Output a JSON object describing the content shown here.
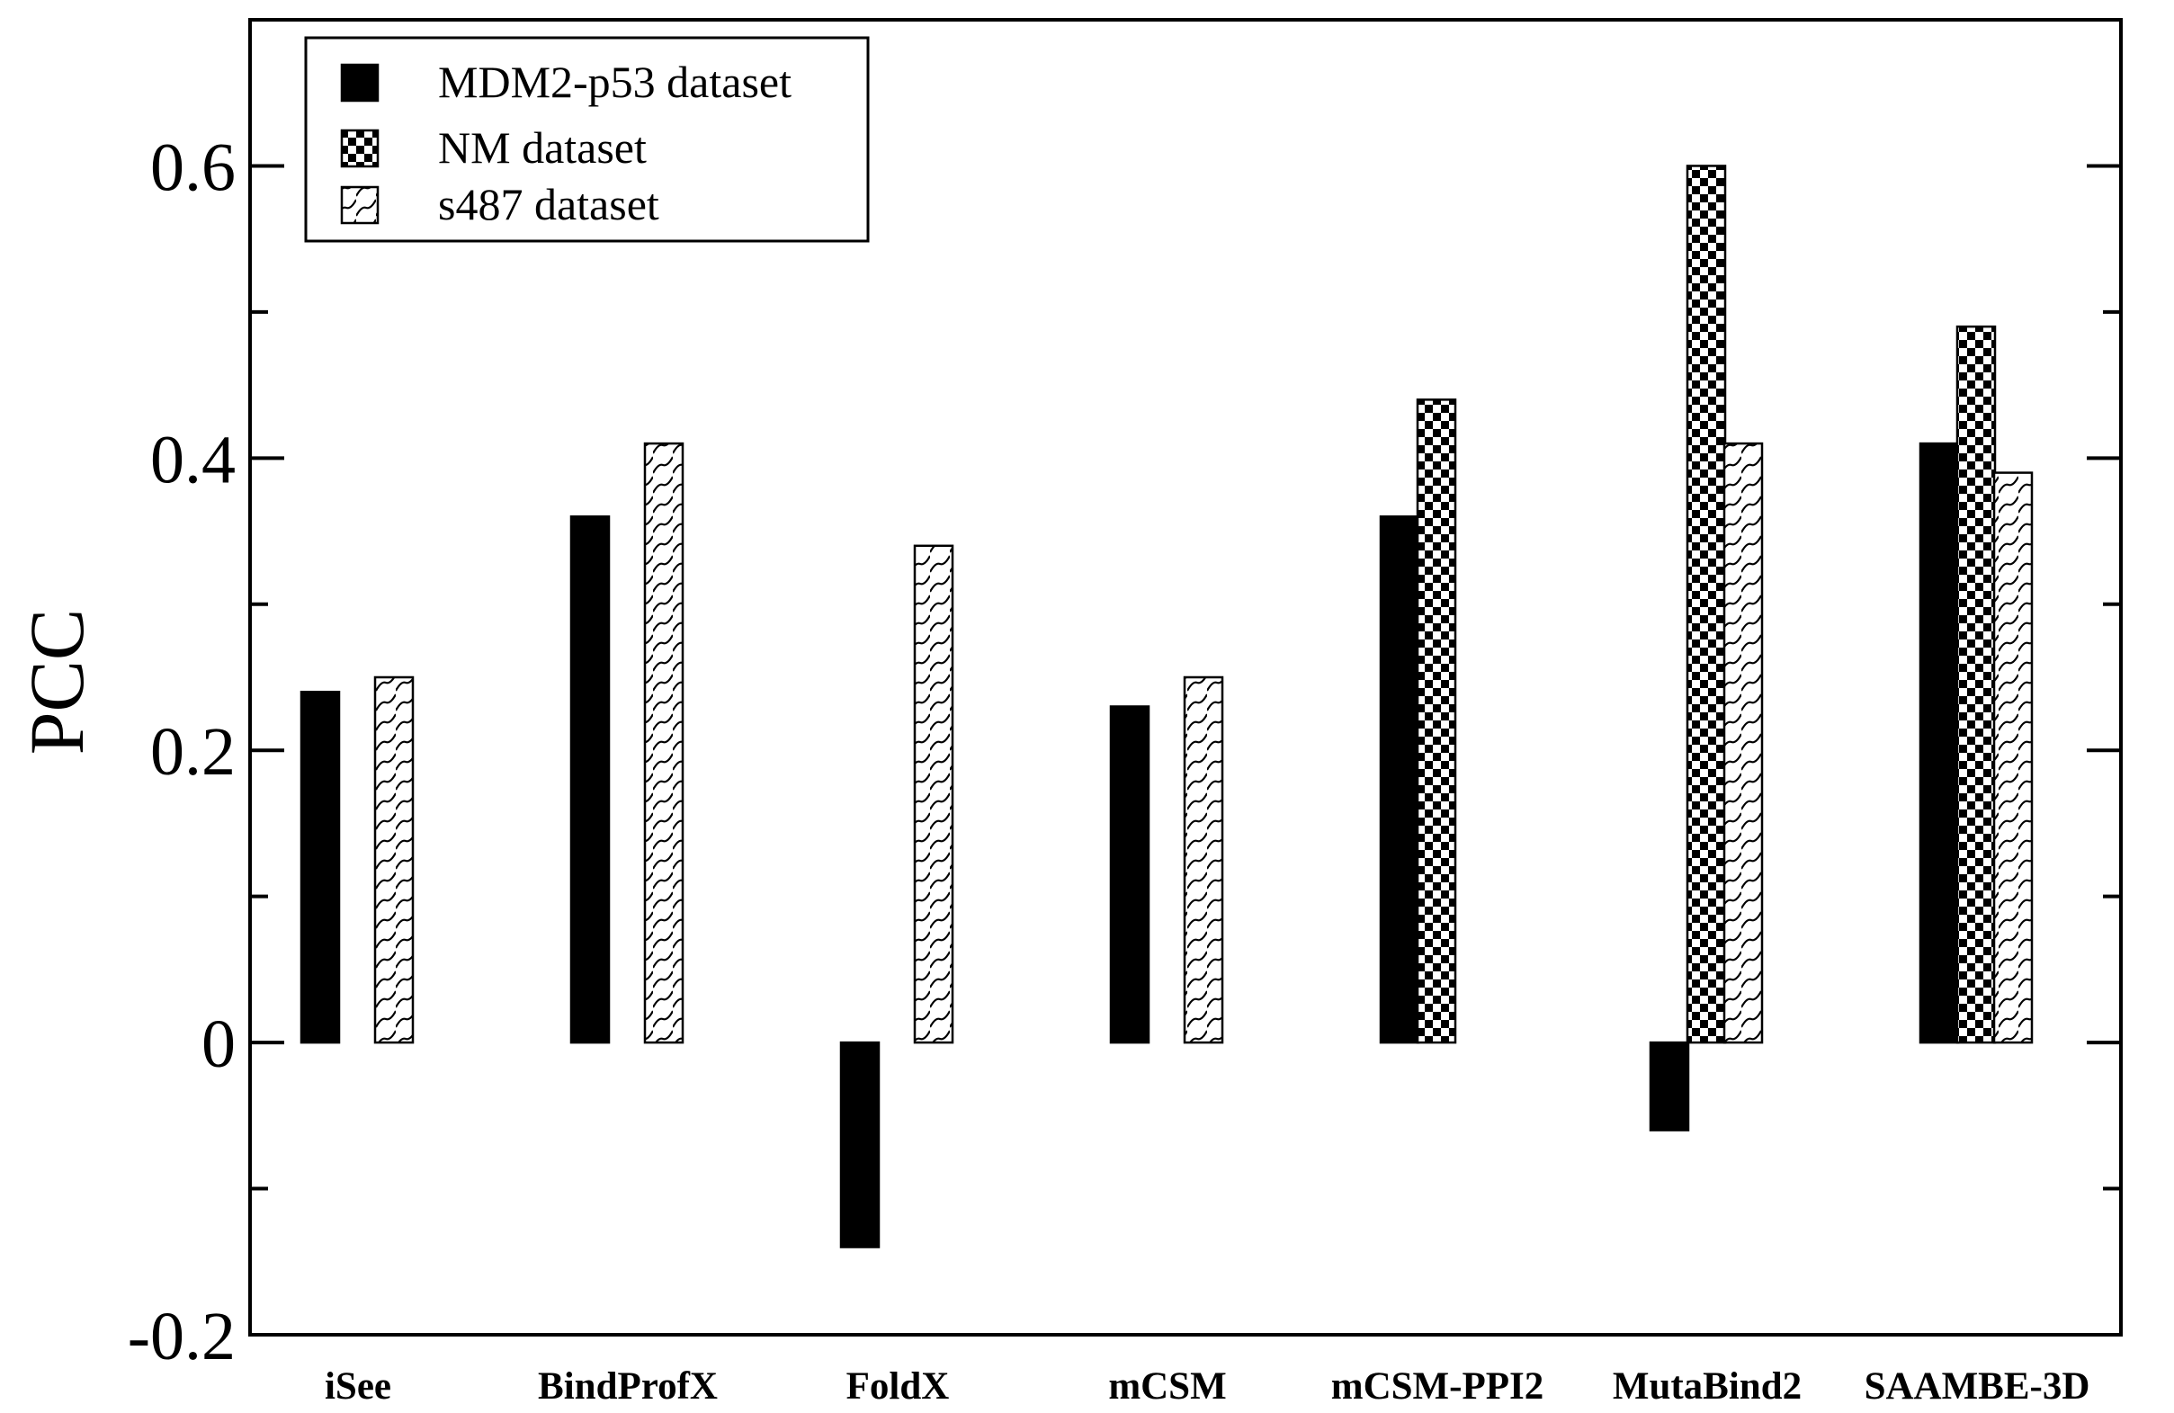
{
  "chart_data": {
    "type": "bar",
    "title": "",
    "xlabel": "",
    "ylabel": "PCC",
    "ylim": [
      -0.2,
      0.7
    ],
    "yticks": [
      -0.2,
      0,
      0.2,
      0.4,
      0.6
    ],
    "ytick_labels": [
      "-0.2",
      "0",
      "0.2",
      "0.4",
      "0.6"
    ],
    "grid": false,
    "legend_position": "top-left",
    "categories": [
      "iSee",
      "BindProfX",
      "FoldX",
      "mCSM",
      "mCSM-PPI2",
      "MutaBind2",
      "SAAMBE-3D"
    ],
    "series": [
      {
        "name": "MDM2-p53 dataset",
        "pattern": "solid",
        "color": "#000000",
        "values": [
          0.24,
          0.36,
          -0.14,
          0.23,
          0.36,
          -0.06,
          0.41
        ]
      },
      {
        "name": "NM dataset",
        "pattern": "checker",
        "color": "#000000",
        "values": [
          null,
          null,
          null,
          null,
          0.44,
          0.6,
          0.49
        ]
      },
      {
        "name": "s487 dataset",
        "pattern": "wave",
        "color": "#000000",
        "values": [
          0.25,
          0.41,
          0.34,
          0.25,
          null,
          0.41,
          0.39
        ]
      }
    ]
  }
}
